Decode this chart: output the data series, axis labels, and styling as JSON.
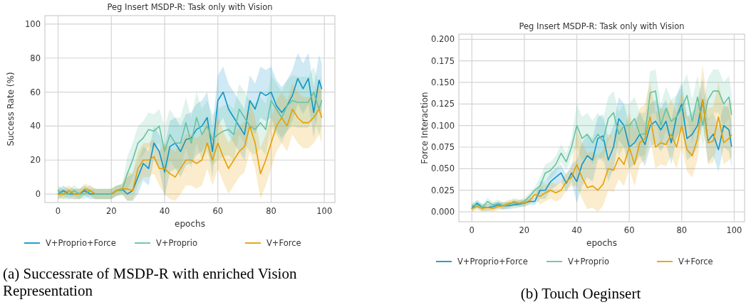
{
  "chart_data": [
    {
      "type": "line",
      "title": "Peg Insert MSDP-R: Task only with Vision",
      "xlabel": "epochs",
      "ylabel": "Success Rate (%)",
      "xlim": [
        -4.95,
        103.95
      ],
      "ylim": [
        -5,
        105
      ],
      "xticks": [
        0,
        20,
        40,
        60,
        80,
        100
      ],
      "yticks": [
        0,
        20,
        40,
        60,
        80,
        100
      ],
      "grid": true,
      "legend": "bottom",
      "line_style": "solid",
      "annotations": [
        "(a) Successrate of MSDP-R with enriched Vision Representation"
      ],
      "x": [
        0,
        2,
        4,
        6,
        8,
        10,
        12,
        14,
        16,
        18,
        20,
        22,
        24,
        26,
        28,
        30,
        32,
        34,
        36,
        38,
        40,
        42,
        44,
        46,
        48,
        50,
        52,
        54,
        56,
        58,
        60,
        62,
        64,
        66,
        68,
        70,
        72,
        74,
        76,
        78,
        80,
        82,
        84,
        86,
        88,
        90,
        92,
        94,
        96,
        98,
        99
      ],
      "series": [
        {
          "name": "V+Proprio+Force",
          "color": "#0e95c8",
          "values": [
            0,
            2,
            0,
            0,
            0,
            2,
            0,
            0,
            0,
            0,
            0,
            2,
            3,
            0,
            2,
            10,
            18,
            15,
            30,
            25,
            13,
            28,
            30,
            25,
            32,
            33,
            38,
            40,
            45,
            25,
            55,
            60,
            50,
            45,
            40,
            35,
            55,
            50,
            60,
            58,
            60,
            52,
            48,
            52,
            58,
            68,
            62,
            68,
            48,
            67,
            62
          ],
          "lower": [
            -3,
            -1,
            -3,
            -3,
            -3,
            -1,
            -3,
            -3,
            -3,
            -3,
            -3,
            -1,
            0,
            -4,
            -4,
            0,
            8,
            5,
            20,
            15,
            -2,
            13,
            15,
            10,
            17,
            18,
            23,
            25,
            30,
            10,
            40,
            45,
            35,
            30,
            25,
            20,
            40,
            35,
            45,
            43,
            45,
            37,
            33,
            37,
            43,
            53,
            47,
            53,
            33,
            52,
            47
          ],
          "upper": [
            3,
            5,
            3,
            3,
            3,
            5,
            3,
            3,
            3,
            3,
            3,
            5,
            6,
            10,
            12,
            20,
            28,
            25,
            40,
            35,
            28,
            43,
            45,
            40,
            47,
            48,
            53,
            55,
            60,
            40,
            70,
            75,
            65,
            60,
            55,
            50,
            70,
            65,
            75,
            73,
            75,
            67,
            63,
            67,
            73,
            83,
            77,
            83,
            63,
            82,
            77
          ]
        },
        {
          "name": "V+Proprio",
          "color": "#66c2a0",
          "values": [
            2,
            0,
            0,
            2,
            0,
            0,
            2,
            0,
            0,
            0,
            0,
            2,
            2,
            12,
            20,
            30,
            33,
            38,
            37,
            40,
            25,
            35,
            30,
            30,
            42,
            30,
            45,
            35,
            40,
            32,
            35,
            37,
            38,
            35,
            50,
            45,
            40,
            38,
            42,
            38,
            55,
            50,
            45,
            52,
            55,
            54,
            54,
            54,
            60,
            50,
            55
          ],
          "lower": [
            -1,
            -3,
            -3,
            -1,
            -3,
            -3,
            -1,
            -3,
            -3,
            -3,
            -3,
            -1,
            -1,
            2,
            10,
            20,
            23,
            28,
            27,
            30,
            10,
            20,
            15,
            15,
            27,
            15,
            30,
            20,
            25,
            17,
            20,
            22,
            23,
            20,
            35,
            30,
            25,
            23,
            27,
            23,
            40,
            35,
            30,
            37,
            40,
            39,
            39,
            39,
            45,
            35,
            40
          ],
          "upper": [
            5,
            3,
            3,
            5,
            3,
            3,
            5,
            3,
            3,
            3,
            3,
            5,
            5,
            22,
            30,
            40,
            43,
            48,
            47,
            50,
            40,
            50,
            45,
            45,
            57,
            45,
            60,
            50,
            55,
            47,
            50,
            52,
            53,
            50,
            65,
            60,
            55,
            53,
            57,
            53,
            70,
            65,
            60,
            67,
            70,
            69,
            69,
            69,
            75,
            65,
            70
          ]
        },
        {
          "name": "V+Force",
          "color": "#e69f00",
          "values": [
            0,
            0,
            2,
            0,
            0,
            3,
            2,
            0,
            null,
            null,
            0,
            2,
            3,
            3,
            2,
            15,
            20,
            20,
            22,
            15,
            15,
            12,
            10,
            15,
            20,
            20,
            18,
            20,
            30,
            20,
            30,
            22,
            15,
            20,
            25,
            28,
            40,
            30,
            12,
            20,
            30,
            40,
            45,
            40,
            50,
            45,
            42,
            42,
            45,
            50,
            45
          ],
          "lower": [
            -3,
            -3,
            -1,
            -3,
            -3,
            0,
            -1,
            -3,
            -3,
            -3,
            -3,
            -1,
            0,
            -4,
            -4,
            5,
            10,
            10,
            12,
            5,
            0,
            -3,
            -4,
            0,
            5,
            5,
            3,
            5,
            15,
            5,
            15,
            7,
            0,
            5,
            10,
            13,
            25,
            15,
            -3,
            5,
            15,
            25,
            30,
            25,
            35,
            30,
            27,
            27,
            30,
            35,
            30
          ],
          "upper": [
            3,
            3,
            5,
            3,
            3,
            6,
            5,
            3,
            3,
            3,
            3,
            5,
            6,
            13,
            12,
            25,
            30,
            30,
            32,
            25,
            30,
            27,
            25,
            30,
            35,
            35,
            33,
            35,
            45,
            35,
            45,
            37,
            30,
            35,
            40,
            43,
            55,
            45,
            27,
            35,
            45,
            55,
            60,
            55,
            65,
            60,
            57,
            57,
            60,
            65,
            60
          ]
        }
      ]
    },
    {
      "type": "line",
      "title": "Peg Insert MSDP-R: Task only with Vision",
      "xlabel": "epochs",
      "ylabel": "Force Interaction",
      "xlim": [
        -4.95,
        103.95
      ],
      "ylim": [
        -0.0115,
        0.206
      ],
      "xticks": [
        0,
        20,
        40,
        60,
        80,
        100
      ],
      "yticks": [
        {
          "value": 0,
          "label": "0.000"
        },
        {
          "value": 0.025,
          "label": "0.025"
        },
        {
          "value": 0.05,
          "label": "0.050"
        },
        {
          "value": 0.075,
          "label": "0.075"
        },
        {
          "value": 0.1,
          "label": "0.100"
        },
        {
          "value": 0.125,
          "label": "0.125"
        },
        {
          "value": 0.15,
          "label": "0.150"
        },
        {
          "value": 0.175,
          "label": "0.175"
        },
        {
          "value": 0.2,
          "label": "0.200"
        }
      ],
      "grid": true,
      "legend": "bottom",
      "line_style": "solid",
      "annotations": [
        "(b) Touch Oeginsert"
      ],
      "x": [
        0,
        2,
        4,
        6,
        8,
        10,
        12,
        14,
        16,
        18,
        20,
        22,
        24,
        26,
        28,
        30,
        32,
        34,
        36,
        38,
        40,
        42,
        44,
        46,
        48,
        50,
        52,
        54,
        56,
        58,
        60,
        62,
        64,
        66,
        68,
        70,
        72,
        74,
        76,
        78,
        80,
        82,
        84,
        86,
        88,
        90,
        92,
        94,
        96,
        98,
        99
      ],
      "series": [
        {
          "name": "V+Proprio+Force",
          "color": "#0e95c8",
          "values": [
            0.004,
            0.01,
            0.005,
            0.005,
            0.006,
            0.008,
            0.007,
            0.007,
            0.008,
            0.009,
            0.01,
            0.012,
            0.012,
            0.025,
            0.025,
            0.035,
            0.04,
            0.045,
            0.033,
            0.045,
            0.035,
            0.055,
            0.065,
            0.06,
            0.085,
            0.088,
            0.06,
            0.075,
            0.108,
            0.1,
            0.075,
            0.08,
            0.09,
            0.078,
            0.1,
            0.105,
            0.095,
            0.105,
            0.08,
            0.11,
            0.125,
            0.085,
            0.09,
            0.1,
            0.13,
            0.082,
            0.09,
            0.072,
            0.1,
            0.095,
            0.076
          ],
          "lower": [
            0,
            0.006,
            0.001,
            0.001,
            0.002,
            0.004,
            0.003,
            0.003,
            0.004,
            0.005,
            0.006,
            0.008,
            0.008,
            0.015,
            0.015,
            0.025,
            0.03,
            0.035,
            0.023,
            0.035,
            0.01,
            0.03,
            0.04,
            0.035,
            0.06,
            0.063,
            0.035,
            0.05,
            0.083,
            0.075,
            0.05,
            0.055,
            0.065,
            0.053,
            0.075,
            0.08,
            0.07,
            0.08,
            0.055,
            0.085,
            0.1,
            0.06,
            0.065,
            0.075,
            0.105,
            0.057,
            0.065,
            0.047,
            0.075,
            0.07,
            0.051
          ],
          "upper": [
            0.008,
            0.014,
            0.009,
            0.009,
            0.01,
            0.012,
            0.011,
            0.011,
            0.012,
            0.013,
            0.014,
            0.016,
            0.016,
            0.035,
            0.035,
            0.045,
            0.05,
            0.055,
            0.043,
            0.055,
            0.06,
            0.08,
            0.09,
            0.085,
            0.11,
            0.113,
            0.085,
            0.1,
            0.133,
            0.125,
            0.1,
            0.105,
            0.115,
            0.103,
            0.125,
            0.13,
            0.12,
            0.13,
            0.105,
            0.135,
            0.15,
            0.11,
            0.115,
            0.125,
            0.155,
            0.107,
            0.115,
            0.097,
            0.125,
            0.12,
            0.101
          ]
        },
        {
          "name": "V+Proprio",
          "color": "#66c2a0",
          "values": [
            0.007,
            0.008,
            0.005,
            0.012,
            0.008,
            0.01,
            0.007,
            0.008,
            0.012,
            0.01,
            0.012,
            0.018,
            0.025,
            0.03,
            0.045,
            0.048,
            0.055,
            0.068,
            0.058,
            0.075,
            0.1,
            0.085,
            0.09,
            0.08,
            0.09,
            0.082,
            0.108,
            0.115,
            0.09,
            0.1,
            0.1,
            0.108,
            0.09,
            0.09,
            0.138,
            0.14,
            0.1,
            0.12,
            0.105,
            0.11,
            0.12,
            0.135,
            0.105,
            0.133,
            0.1,
            0.13,
            0.14,
            0.14,
            0.125,
            0.133,
            0.113
          ],
          "lower": [
            0.003,
            0.004,
            0.001,
            0.008,
            0.004,
            0.006,
            0.003,
            0.004,
            0.008,
            0.006,
            0.008,
            0.014,
            0.021,
            0.02,
            0.035,
            0.038,
            0.045,
            0.058,
            0.048,
            0.065,
            0.075,
            0.06,
            0.065,
            0.055,
            0.065,
            0.057,
            0.083,
            0.09,
            0.065,
            0.075,
            0.075,
            0.083,
            0.065,
            0.065,
            0.113,
            0.115,
            0.075,
            0.095,
            0.08,
            0.085,
            0.095,
            0.11,
            0.08,
            0.108,
            0.075,
            0.105,
            0.115,
            0.115,
            0.1,
            0.108,
            0.088
          ],
          "upper": [
            0.011,
            0.012,
            0.009,
            0.016,
            0.012,
            0.014,
            0.011,
            0.012,
            0.016,
            0.014,
            0.016,
            0.022,
            0.029,
            0.04,
            0.055,
            0.058,
            0.065,
            0.078,
            0.068,
            0.085,
            0.125,
            0.11,
            0.115,
            0.105,
            0.115,
            0.107,
            0.133,
            0.14,
            0.115,
            0.125,
            0.125,
            0.133,
            0.115,
            0.115,
            0.163,
            0.165,
            0.125,
            0.145,
            0.13,
            0.135,
            0.145,
            0.16,
            0.13,
            0.158,
            0.125,
            0.155,
            0.165,
            0.165,
            0.15,
            0.158,
            0.138
          ]
        },
        {
          "name": "V+Force",
          "color": "#e69f00",
          "values": [
            0.004,
            0.006,
            0.004,
            0.005,
            0.004,
            0.006,
            0.007,
            0.01,
            0.01,
            0.01,
            0.01,
            0.013,
            0.02,
            0.018,
            0.022,
            0.025,
            0.022,
            0.025,
            0.035,
            0.04,
            0.055,
            0.04,
            0.028,
            0.03,
            0.025,
            0.032,
            0.05,
            0.048,
            0.063,
            0.055,
            0.075,
            0.055,
            0.08,
            0.085,
            0.11,
            0.075,
            0.08,
            0.078,
            0.09,
            0.075,
            0.1,
            0.072,
            0.065,
            0.085,
            0.13,
            0.08,
            0.082,
            0.11,
            0.08,
            0.085,
            0.089
          ],
          "lower": [
            0,
            0.002,
            0,
            0.001,
            0,
            0.002,
            0.003,
            0.006,
            0.006,
            0.006,
            0.006,
            0.009,
            0.016,
            0.008,
            0.012,
            0.015,
            0.012,
            0.015,
            0.025,
            0.03,
            0.03,
            0.015,
            0.003,
            0.005,
            0,
            0.007,
            0.025,
            0.023,
            0.038,
            0.03,
            0.05,
            0.03,
            0.055,
            0.06,
            0.085,
            0.05,
            0.055,
            0.053,
            0.065,
            0.05,
            0.075,
            0.047,
            0.04,
            0.06,
            0.105,
            0.055,
            0.057,
            0.085,
            0.055,
            0.06,
            0.064
          ],
          "upper": [
            0.008,
            0.01,
            0.008,
            0.009,
            0.008,
            0.01,
            0.011,
            0.014,
            0.014,
            0.014,
            0.014,
            0.017,
            0.024,
            0.028,
            0.032,
            0.035,
            0.032,
            0.035,
            0.045,
            0.05,
            0.095,
            0.08,
            0.068,
            0.07,
            0.065,
            0.072,
            0.09,
            0.088,
            0.103,
            0.095,
            0.115,
            0.095,
            0.12,
            0.125,
            0.15,
            0.115,
            0.12,
            0.118,
            0.13,
            0.115,
            0.14,
            0.112,
            0.105,
            0.125,
            0.17,
            0.12,
            0.122,
            0.15,
            0.12,
            0.125,
            0.129
          ]
        }
      ]
    }
  ]
}
